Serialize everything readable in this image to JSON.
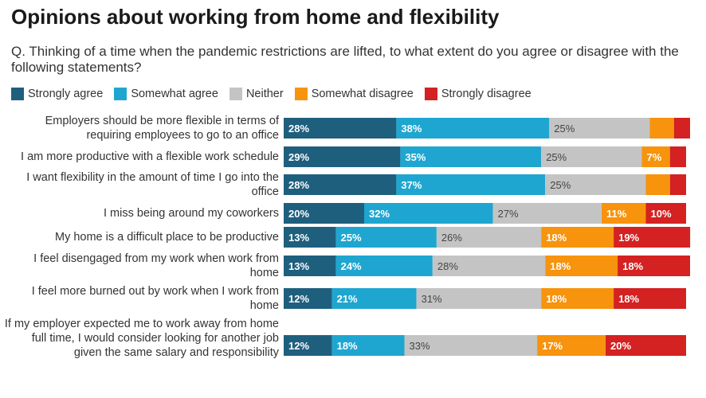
{
  "title": "Opinions about working from home and flexibility",
  "subtitle": "Q. Thinking of a time when the pandemic restrictions are lifted, to what extent do you agree or disagree with the following statements?",
  "chart_data": {
    "type": "bar",
    "orientation": "horizontal",
    "stacked": true,
    "title": "Opinions about working from home and flexibility",
    "subtitle": "Q. Thinking of a time when the pandemic restrictions are lifted, to what extent do you agree or disagree with the following statements?",
    "legend_position": "top-left",
    "categories": [
      "Employers should be more flexible in terms of requiring employees to go to an office",
      "I am more productive with a flexible work schedule",
      "I want flexibility in the amount of time I go into the office",
      "I miss being around my coworkers",
      "My home is a difficult place to be productive",
      "I feel disengaged from my work when work from home",
      "I feel more burned out by work when I work from home",
      "If my employer expected me to work away from home full time, I would consider looking for another job given the same salary and responsibility"
    ],
    "series": [
      {
        "name": "Strongly agree",
        "color": "#1f5f7e",
        "label_color": "#ffffff",
        "values": [
          28,
          29,
          28,
          20,
          13,
          13,
          12,
          12
        ],
        "labels": [
          "28%",
          "29%",
          "28%",
          "20%",
          "13%",
          "13%",
          "12%",
          "12%"
        ]
      },
      {
        "name": "Somewhat agree",
        "color": "#1ea6d0",
        "label_color": "#ffffff",
        "values": [
          38,
          35,
          37,
          32,
          25,
          24,
          21,
          18
        ],
        "labels": [
          "38%",
          "35%",
          "37%",
          "32%",
          "25%",
          "24%",
          "21%",
          "18%"
        ]
      },
      {
        "name": "Neither",
        "color": "#c4c4c4",
        "label_color": "#444444",
        "values": [
          25,
          25,
          25,
          27,
          26,
          28,
          31,
          33
        ],
        "labels": [
          "25%",
          "25%",
          "25%",
          "27%",
          "26%",
          "28%",
          "31%",
          "33%"
        ]
      },
      {
        "name": "Somewhat disagree",
        "color": "#f7930d",
        "label_color": "#ffffff",
        "values": [
          6,
          7,
          6,
          11,
          18,
          18,
          18,
          17
        ],
        "labels": [
          "",
          "7%",
          "",
          "11%",
          "18%",
          "18%",
          "18%",
          "17%"
        ]
      },
      {
        "name": "Strongly disagree",
        "color": "#d42121",
        "label_color": "#ffffff",
        "values": [
          4,
          4,
          4,
          10,
          19,
          18,
          18,
          20
        ],
        "labels": [
          "",
          "",
          "",
          "10%",
          "19%",
          "18%",
          "18%",
          "20%"
        ]
      }
    ]
  }
}
